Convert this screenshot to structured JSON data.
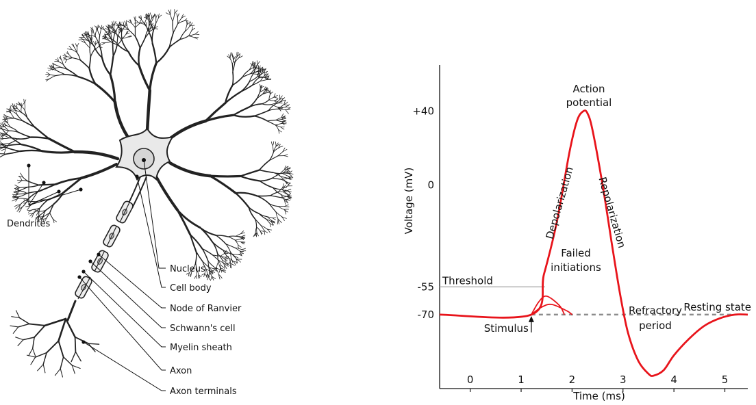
{
  "neuron": {
    "labels": {
      "dendrites": "Dendrites",
      "nucleus": "Nucleus",
      "cell_body": "Cell body",
      "node_of_ranvier": "Node of Ranvier",
      "schwann_cell": "Schwann's cell",
      "myelin_sheath": "Myelin sheath",
      "axon": "Axon",
      "axon_terminals": "Axon terminals"
    }
  },
  "colors": {
    "potential_curve": "#e8141b",
    "threshold_line": "#aaaaaa",
    "resting_dashed": "#8c8c8c",
    "membrane": "#222222",
    "soma_fill": "#e9e9e9"
  },
  "chart_data": {
    "type": "line",
    "xlabel": "Time (ms)",
    "ylabel": "Voltage (mV)",
    "x_ticks": [
      "0",
      "1",
      "2",
      "3",
      "4",
      "5"
    ],
    "x_tick_values": [
      0,
      1,
      2,
      3,
      4,
      5
    ],
    "y_ticks": [
      "+40",
      "0",
      "-55",
      "-70"
    ],
    "y_tick_values": [
      40,
      0,
      -55,
      -70
    ],
    "xlim": [
      -0.6,
      5.45
    ],
    "ylim": [
      -110,
      65
    ],
    "grid": false,
    "series": [
      {
        "x": [
          -0.6,
          1.2,
          1.45,
          1.7,
          1.95,
          2.1,
          2.22,
          2.3,
          2.4,
          2.6,
          2.8,
          2.95,
          3.1,
          3.3,
          3.5,
          3.6,
          3.8,
          4.0,
          4.3,
          4.6,
          4.9,
          5.2,
          5.45
        ],
        "y": [
          -70,
          -70,
          -48,
          -20,
          18,
          35,
          40,
          39,
          30,
          0,
          -35,
          -60,
          -80,
          -95,
          -102,
          -103,
          -100,
          -92,
          -83,
          -76,
          -72,
          -70,
          -70
        ]
      }
    ],
    "failed_initiations": [
      {
        "x": [
          1.2,
          1.35,
          1.5,
          1.75,
          1.85
        ],
        "y": [
          -70,
          -63,
          -60,
          -65,
          -70
        ]
      },
      {
        "x": [
          1.2,
          1.4,
          1.6,
          1.9,
          2.0
        ],
        "y": [
          -70,
          -66,
          -64.5,
          -68,
          -70
        ]
      }
    ],
    "threshold": {
      "label": "Threshold",
      "value": -55
    },
    "resting": {
      "label": "Resting state",
      "value": -70
    },
    "annotations": {
      "action_potential": [
        "Action",
        "potential"
      ],
      "depolarization": "Depolarization",
      "repolarization": "Repolarization",
      "failed_initiations": [
        "Failed",
        "initiations"
      ],
      "stimulus": "Stimulus",
      "refractory_period": [
        "Refractory",
        "period"
      ]
    }
  }
}
